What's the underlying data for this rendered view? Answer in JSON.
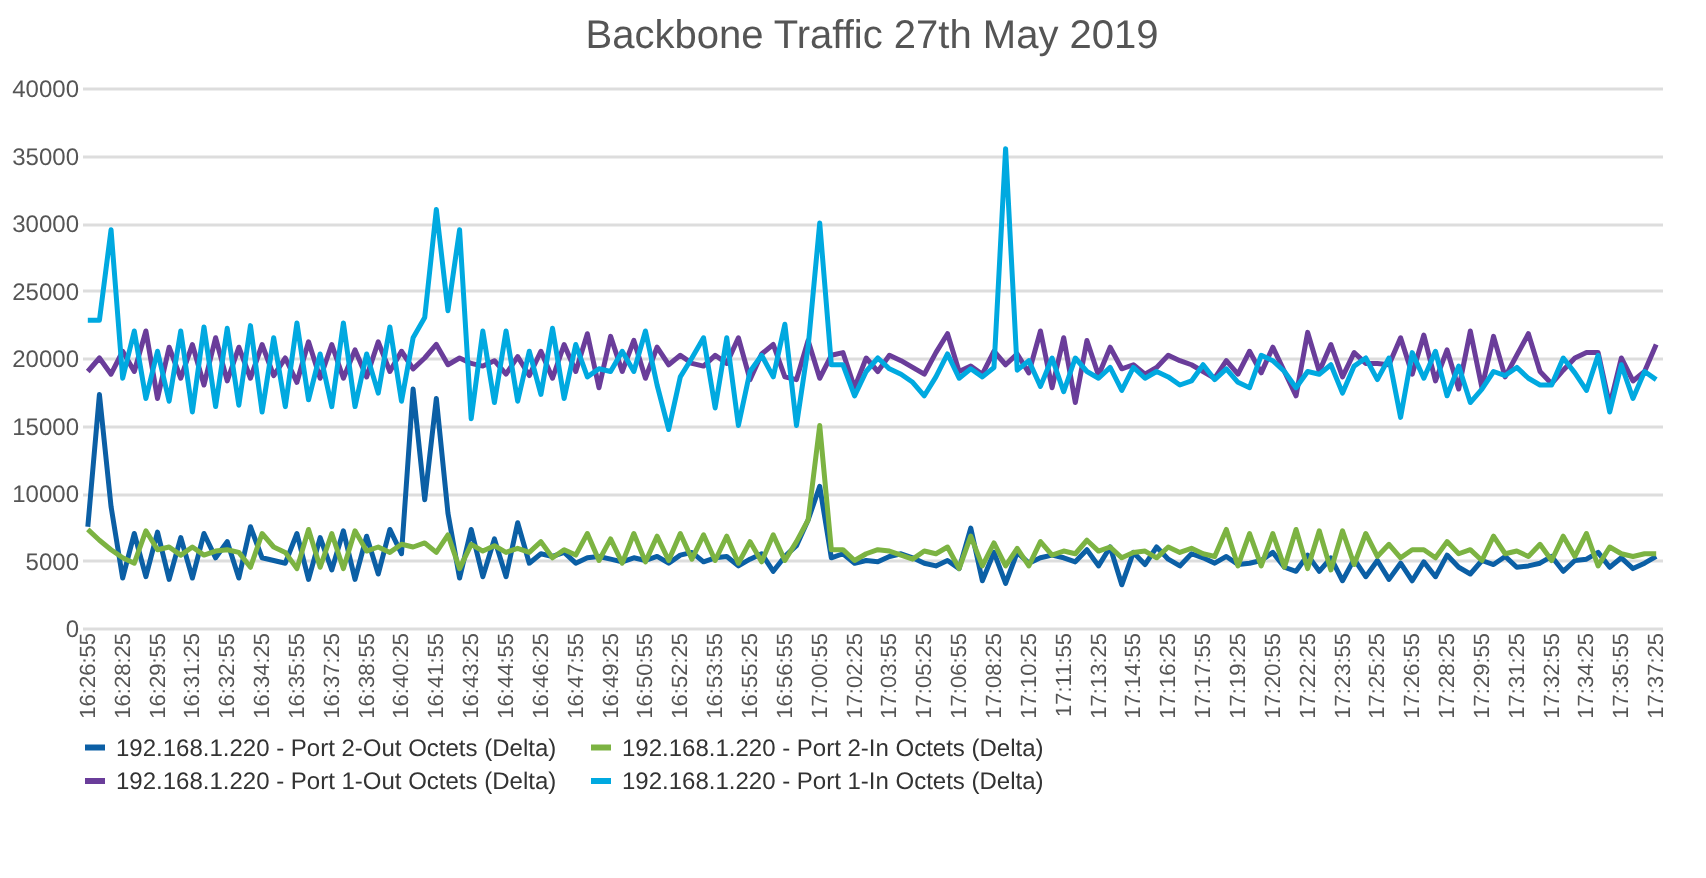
{
  "chart_data": {
    "type": "line",
    "title": "Backbone Traffic 27th May 2019",
    "categories": [
      "16:26:55",
      null,
      null,
      "16:28:25",
      null,
      null,
      "16:29:55",
      null,
      null,
      "16:31:25",
      null,
      null,
      "16:32:55",
      null,
      null,
      "16:34:25",
      null,
      null,
      "16:35:55",
      null,
      null,
      "16:37:25",
      null,
      null,
      "16:38:55",
      null,
      null,
      "16:40:25",
      null,
      null,
      "16:41:55",
      null,
      null,
      "16:43:25",
      null,
      null,
      "16:44:55",
      null,
      null,
      "16:46:25",
      null,
      null,
      "16:47:55",
      null,
      null,
      "16:49:25",
      null,
      null,
      "16:50:55",
      null,
      null,
      "16:52:25",
      null,
      null,
      "16:53:55",
      null,
      null,
      "16:55:25",
      null,
      null,
      "16:56:55",
      null,
      null,
      "17:00:55",
      null,
      null,
      "17:02:25",
      null,
      null,
      "17:03:55",
      null,
      null,
      "17:05:25",
      null,
      null,
      "17:06:55",
      null,
      null,
      "17:08:25",
      null,
      null,
      "17:10:25",
      null,
      null,
      "17:11:55",
      null,
      null,
      "17:13:25",
      null,
      null,
      "17:14:55",
      null,
      null,
      "17:16:25",
      null,
      null,
      "17:17:55",
      null,
      null,
      "17:19:25",
      null,
      null,
      "17:20:55",
      null,
      null,
      "17:22:25",
      null,
      null,
      "17:23:55",
      null,
      null,
      "17:25:25",
      null,
      null,
      "17:26:55",
      null,
      null,
      "17:28:25",
      null,
      null,
      "17:29:55",
      null,
      null,
      "17:31:25",
      null,
      null,
      "17:32:55",
      null,
      null,
      "17:34:25",
      null,
      null,
      "17:35:55",
      null,
      null,
      "17:37:25"
    ],
    "series": [
      {
        "name": "192.168.1.220 - Port 2-Out Octets (Delta)",
        "color": "#0b5fa5",
        "values": [
          7500,
          17300,
          9000,
          3700,
          7000,
          3800,
          7100,
          3600,
          6700,
          3700,
          7000,
          5200,
          6400,
          3700,
          7500,
          5200,
          5000,
          4800,
          7000,
          3600,
          6700,
          4300,
          7200,
          3600,
          6800,
          4000,
          7300,
          5500,
          17700,
          9500,
          17000,
          8500,
          3700,
          7300,
          3800,
          6600,
          3800,
          7800,
          4800,
          5500,
          5300,
          5600,
          4800,
          5200,
          5300,
          5100,
          4900,
          5200,
          5000,
          5300,
          4800,
          5400,
          5600,
          4900,
          5200,
          5300,
          4600,
          5100,
          5500,
          4200,
          5300,
          6100,
          8000,
          10500,
          5200,
          5500,
          4800,
          5000,
          4900,
          5300,
          5500,
          5200,
          4800,
          4600,
          5000,
          4400,
          7400,
          3500,
          5600,
          3300,
          5600,
          4800,
          5200,
          5400,
          5200,
          4900,
          5800,
          4600,
          6000,
          3200,
          5600,
          4700,
          6000,
          5100,
          4600,
          5500,
          5200,
          4800,
          5300,
          4700,
          4800,
          5000,
          5600,
          4500,
          4200,
          5400,
          4200,
          5200,
          3500,
          5100,
          3800,
          5000,
          3600,
          4800,
          3500,
          4900,
          3800,
          5400,
          4500,
          4000,
          5000,
          4700,
          5300,
          4500,
          4600,
          4800,
          5300,
          4200,
          5000,
          5100,
          5600,
          4500,
          5200,
          4400,
          4800,
          5300
        ]
      },
      {
        "name": "192.168.1.220 - Port 2-In Octets (Delta)",
        "color": "#7cb342",
        "values": [
          7300,
          6500,
          5800,
          5200,
          4800,
          7200,
          5800,
          6000,
          5400,
          6000,
          5400,
          5700,
          5800,
          5600,
          4500,
          7000,
          6000,
          5600,
          4400,
          7300,
          4500,
          7000,
          4400,
          7200,
          5700,
          6000,
          5600,
          6200,
          6000,
          6300,
          5600,
          6900,
          4400,
          6200,
          5700,
          6100,
          5600,
          5900,
          5600,
          6400,
          5200,
          5800,
          5400,
          7000,
          5000,
          6600,
          4800,
          7000,
          4900,
          6800,
          5000,
          7000,
          5100,
          6900,
          5000,
          6800,
          4800,
          6400,
          4900,
          6900,
          5000,
          6400,
          8000,
          15000,
          5800,
          5800,
          5000,
          5500,
          5800,
          5700,
          5400,
          5100,
          5700,
          5500,
          6000,
          4400,
          6800,
          4600,
          6300,
          4600,
          5900,
          4600,
          6400,
          5400,
          5700,
          5500,
          6500,
          5700,
          6000,
          5200,
          5600,
          5700,
          5200,
          6000,
          5600,
          5900,
          5500,
          5300,
          7300,
          4600,
          7000,
          4600,
          7000,
          4500,
          7300,
          4400,
          7200,
          4300,
          7200,
          4700,
          7000,
          5300,
          6200,
          5200,
          5800,
          5800,
          5200,
          6400,
          5500,
          5800,
          5000,
          6800,
          5500,
          5700,
          5300,
          6200,
          5000,
          6800,
          5300,
          7000,
          4600,
          6000,
          5500,
          5300,
          5500,
          5500
        ]
      },
      {
        "name": "192.168.1.220 - Port 1-Out Octets (Delta)",
        "color": "#6a3d9a",
        "values": [
          19000,
          20000,
          18800,
          20500,
          19000,
          22000,
          17000,
          20800,
          18500,
          21000,
          18000,
          21500,
          18300,
          20800,
          18500,
          21000,
          18700,
          20000,
          18200,
          21200,
          18500,
          21000,
          18500,
          20600,
          18600,
          21200,
          19000,
          20500,
          19200,
          20000,
          21000,
          19500,
          20000,
          19600,
          19400,
          19800,
          18800,
          20100,
          18700,
          20500,
          18500,
          21000,
          19000,
          21800,
          17800,
          21600,
          19000,
          21300,
          18500,
          20800,
          19500,
          20200,
          19600,
          19400,
          20200,
          19600,
          21500,
          18400,
          20300,
          21000,
          18600,
          18400,
          21300,
          18500,
          20200,
          20400,
          17800,
          20000,
          19000,
          20200,
          19800,
          19300,
          18800,
          20400,
          21800,
          19000,
          19400,
          18800,
          20500,
          19500,
          20300,
          18900,
          22000,
          17800,
          21500,
          16700,
          21300,
          18700,
          20800,
          19200,
          19500,
          18800,
          19300,
          20200,
          19800,
          19500,
          19000,
          18500,
          19800,
          18800,
          20500,
          18900,
          20800,
          19000,
          17200,
          21900,
          19000,
          21000,
          18600,
          20400,
          19600,
          19600,
          19500,
          21500,
          18800,
          21700,
          18300,
          20600,
          17700,
          22000,
          17800,
          21600,
          18600,
          20200,
          21800,
          19000,
          18100,
          19100,
          20000,
          20400,
          20400,
          16500,
          20000,
          18300,
          19000,
          21000
        ]
      },
      {
        "name": "192.168.1.220 - Port 1-In Octets (Delta)",
        "color": "#00a9e0",
        "values": [
          22800,
          22800,
          29500,
          18500,
          22000,
          17000,
          20500,
          16800,
          22000,
          16000,
          22300,
          16400,
          22200,
          16500,
          22400,
          16000,
          21500,
          16400,
          22600,
          16900,
          20300,
          16400,
          22600,
          16400,
          20300,
          17400,
          22300,
          16800,
          21500,
          23000,
          31000,
          23500,
          29500,
          15500,
          22000,
          16700,
          22000,
          16800,
          20500,
          17300,
          22200,
          17000,
          21000,
          18600,
          19200,
          19000,
          20500,
          19000,
          22000,
          18000,
          14700,
          18600,
          20000,
          21500,
          16300,
          21500,
          15000,
          19000,
          20200,
          18600,
          22500,
          15000,
          20800,
          30000,
          19500,
          19500,
          17200,
          19000,
          20000,
          19200,
          18800,
          18200,
          17200,
          18600,
          20300,
          18500,
          19200,
          18600,
          19300,
          35500,
          19100,
          19800,
          17900,
          20000,
          17500,
          20000,
          19000,
          18500,
          19300,
          17600,
          19300,
          18500,
          19000,
          18600,
          18000,
          18300,
          19500,
          18400,
          19200,
          18200,
          17800,
          20200,
          19800,
          19000,
          17800,
          19000,
          18800,
          19500,
          17400,
          19400,
          20000,
          18400,
          20000,
          15600,
          20400,
          18500,
          20500,
          17200,
          19400,
          16700,
          17700,
          19000,
          18700,
          19300,
          18500,
          18000,
          18000,
          20000,
          18900,
          17600,
          20200,
          16000,
          19500,
          17000,
          19000,
          18400
        ]
      }
    ],
    "ylim": [
      0,
      40000
    ],
    "yticks": [
      0,
      5000,
      10000,
      15000,
      20000,
      25000,
      30000,
      35000,
      40000
    ],
    "grid": "y",
    "legend": "bottom"
  }
}
